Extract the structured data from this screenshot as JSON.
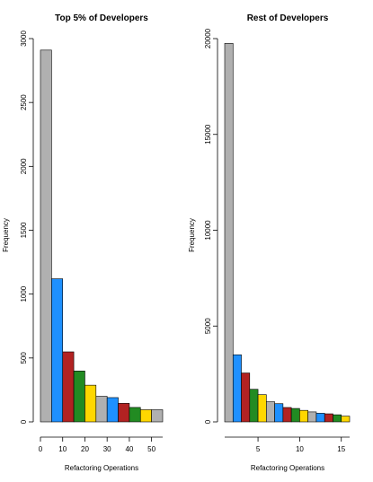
{
  "chart_data": [
    {
      "type": "bar",
      "title": "Top 5% of Developers",
      "xlabel": "Refactoring Operations",
      "ylabel": "Frequency",
      "bin_width": 5,
      "bin_starts": [
        0,
        5,
        10,
        15,
        20,
        25,
        30,
        35,
        40,
        45,
        50
      ],
      "values": [
        2910,
        1120,
        548,
        398,
        287,
        200,
        190,
        145,
        113,
        95,
        95
      ],
      "xlim": [
        0,
        55
      ],
      "ylim": [
        0,
        3000
      ],
      "xticks": [
        0,
        10,
        20,
        30,
        40,
        50
      ],
      "yticks": [
        0,
        500,
        1000,
        1500,
        2000,
        2500,
        3000
      ],
      "grid": false,
      "legend": "none"
    },
    {
      "type": "bar",
      "title": "Rest of Developers",
      "xlabel": "Refactoring Operations",
      "ylabel": "Frequency",
      "bin_width": 1,
      "bin_starts": [
        1,
        2,
        3,
        4,
        5,
        6,
        7,
        8,
        9,
        10,
        11,
        12,
        13,
        14,
        15
      ],
      "values": [
        19750,
        3500,
        2550,
        1700,
        1420,
        1050,
        950,
        750,
        700,
        600,
        520,
        450,
        420,
        370,
        300
      ],
      "xlim": [
        1,
        16
      ],
      "ylim": [
        0,
        20000
      ],
      "xticks": [
        5,
        10,
        15
      ],
      "yticks": [
        0,
        5000,
        10000,
        15000,
        20000
      ],
      "grid": false,
      "legend": "none"
    }
  ],
  "colors": {
    "palette": [
      "#b0b0b0",
      "#1e90ff",
      "#b22222",
      "#228b22",
      "#ffd700"
    ]
  }
}
